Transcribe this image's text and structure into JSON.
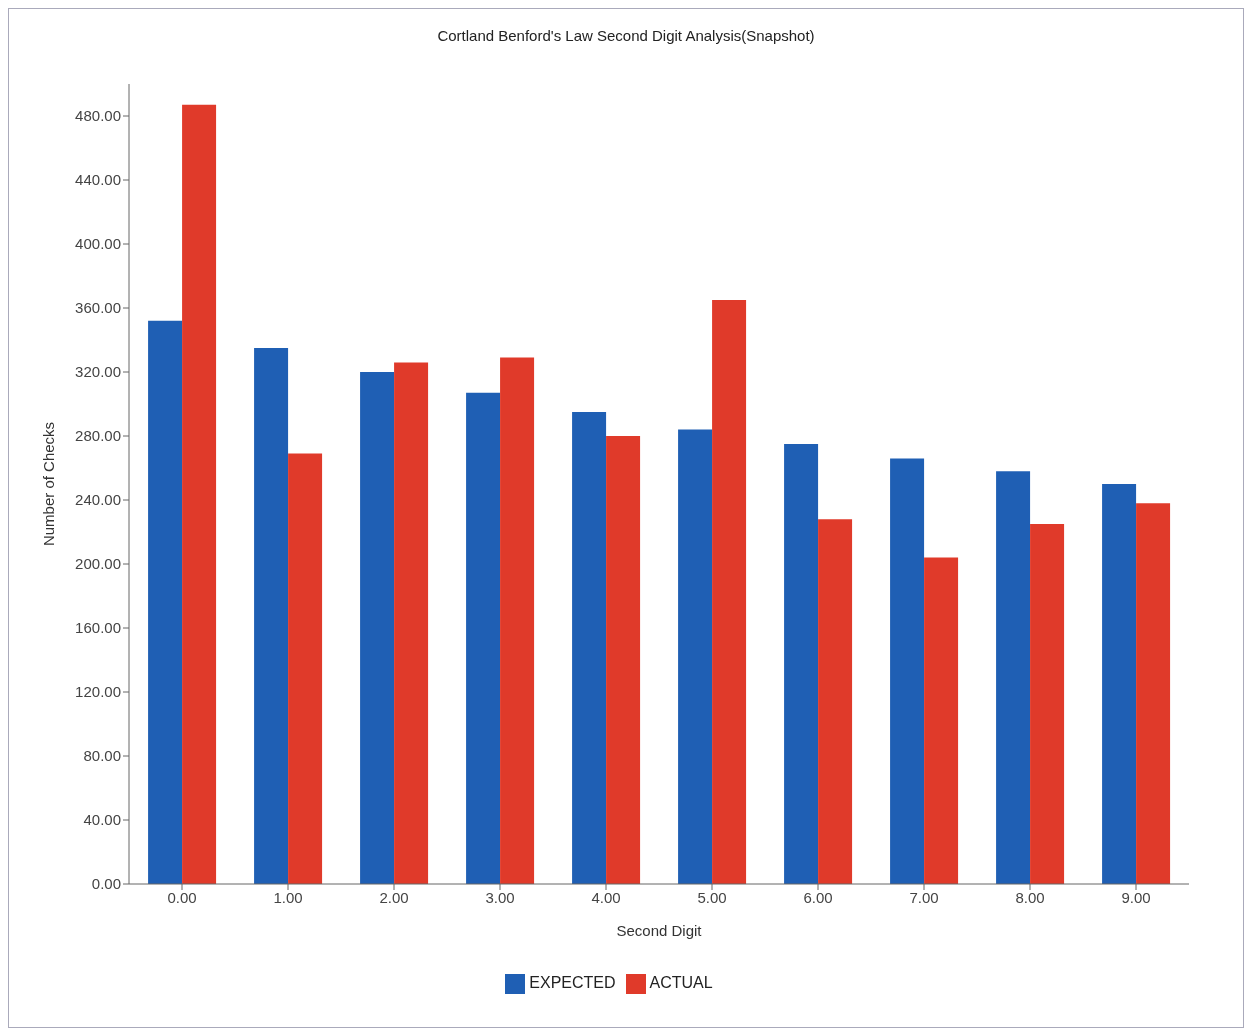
{
  "chart_data": {
    "type": "bar",
    "title": "Cortland Benford's Law Second Digit Analysis(Snapshot)",
    "xlabel": "Second Digit",
    "ylabel": "Number of Checks",
    "categories": [
      "0.00",
      "1.00",
      "2.00",
      "3.00",
      "4.00",
      "5.00",
      "6.00",
      "7.00",
      "8.00",
      "9.00"
    ],
    "series": [
      {
        "name": "EXPECTED",
        "color": "#1f5fb4",
        "values": [
          352,
          335,
          320,
          307,
          295,
          284,
          275,
          266,
          258,
          250
        ]
      },
      {
        "name": "ACTUAL",
        "color": "#e03a2a",
        "values": [
          487,
          269,
          326,
          329,
          280,
          365,
          228,
          204,
          225,
          238
        ]
      }
    ],
    "ylim": [
      0,
      500
    ],
    "yticks": [
      {
        "value": 0,
        "label": "0.00"
      },
      {
        "value": 40,
        "label": "40.00"
      },
      {
        "value": 80,
        "label": "80.00"
      },
      {
        "value": 120,
        "label": "120.00"
      },
      {
        "value": 160,
        "label": "160.00"
      },
      {
        "value": 200,
        "label": "200.00"
      },
      {
        "value": 240,
        "label": "240.00"
      },
      {
        "value": 280,
        "label": "280.00"
      },
      {
        "value": 320,
        "label": "320.00"
      },
      {
        "value": 360,
        "label": "360.00"
      },
      {
        "value": 400,
        "label": "400.00"
      },
      {
        "value": 440,
        "label": "440.00"
      },
      {
        "value": 480,
        "label": "480.00"
      }
    ],
    "legend": "bottom"
  }
}
